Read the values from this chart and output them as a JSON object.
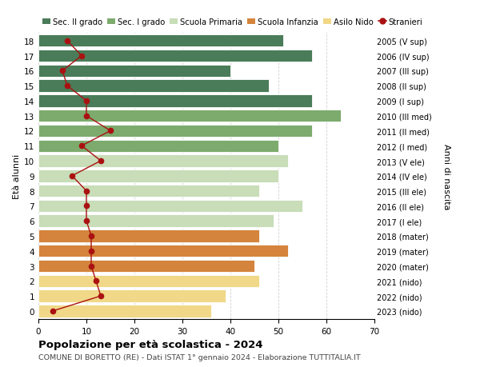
{
  "ages": [
    18,
    17,
    16,
    15,
    14,
    13,
    12,
    11,
    10,
    9,
    8,
    7,
    6,
    5,
    4,
    3,
    2,
    1,
    0
  ],
  "right_labels": [
    "2005 (V sup)",
    "2006 (IV sup)",
    "2007 (III sup)",
    "2008 (II sup)",
    "2009 (I sup)",
    "2010 (III med)",
    "2011 (II med)",
    "2012 (I med)",
    "2013 (V ele)",
    "2014 (IV ele)",
    "2015 (III ele)",
    "2016 (II ele)",
    "2017 (I ele)",
    "2018 (mater)",
    "2019 (mater)",
    "2020 (mater)",
    "2021 (nido)",
    "2022 (nido)",
    "2023 (nido)"
  ],
  "bar_values": [
    51,
    57,
    40,
    48,
    57,
    63,
    57,
    50,
    52,
    50,
    46,
    55,
    49,
    46,
    52,
    45,
    46,
    39,
    36
  ],
  "stranieri_values": [
    6,
    9,
    5,
    6,
    10,
    10,
    15,
    9,
    13,
    7,
    10,
    10,
    10,
    11,
    11,
    11,
    12,
    13,
    3
  ],
  "bar_colors": [
    "#4a7c59",
    "#4a7c59",
    "#4a7c59",
    "#4a7c59",
    "#4a7c59",
    "#7dab6e",
    "#7dab6e",
    "#7dab6e",
    "#c8ddb8",
    "#c8ddb8",
    "#c8ddb8",
    "#c8ddb8",
    "#c8ddb8",
    "#d4843c",
    "#d4843c",
    "#d4843c",
    "#f0d888",
    "#f0d888",
    "#f0d888"
  ],
  "legend_labels": [
    "Sec. II grado",
    "Sec. I grado",
    "Scuola Primaria",
    "Scuola Infanzia",
    "Asilo Nido",
    "Stranieri"
  ],
  "legend_colors": [
    "#4a7c59",
    "#7dab6e",
    "#c8ddb8",
    "#d4843c",
    "#f0d888",
    "#cc1111"
  ],
  "stranieri_color": "#aa1111",
  "title": "Popolazione per età scolastica - 2024",
  "subtitle": "COMUNE DI BORETTO (RE) - Dati ISTAT 1° gennaio 2024 - Elaborazione TUTTITALIA.IT",
  "ylabel_left": "Età alunni",
  "ylabel_right": "Anni di nascita",
  "xlim": [
    0,
    70
  ],
  "xticks": [
    0,
    10,
    20,
    30,
    40,
    50,
    60,
    70
  ],
  "background_color": "#ffffff",
  "grid_color": "#cccccc"
}
